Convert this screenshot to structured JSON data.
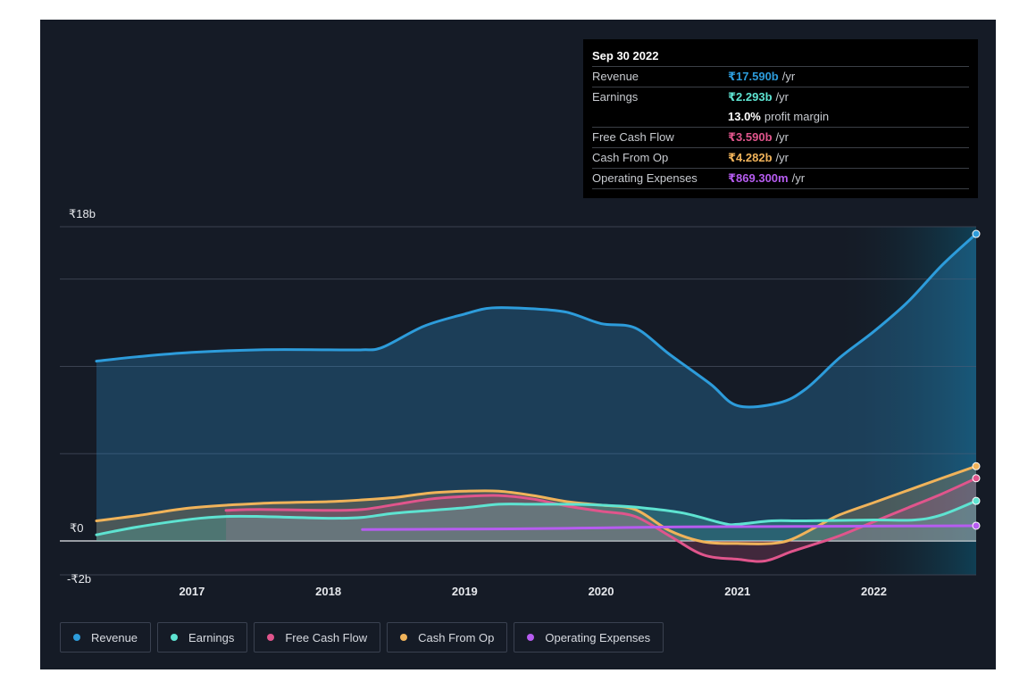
{
  "tooltip": {
    "date": "Sep 30 2022",
    "rows": [
      {
        "name": "Revenue",
        "value": "₹17.590b",
        "unit": "/yr",
        "color": "#2d9cdb"
      },
      {
        "name": "Earnings",
        "value": "₹2.293b",
        "unit": "/yr",
        "color": "#5ee3d1"
      },
      {
        "name": "",
        "value": "13.0%",
        "unit": "profit margin",
        "color": "#ffffff"
      },
      {
        "name": "Free Cash Flow",
        "value": "₹3.590b",
        "unit": "/yr",
        "color": "#e0558c"
      },
      {
        "name": "Cash From Op",
        "value": "₹4.282b",
        "unit": "/yr",
        "color": "#f0b35a"
      },
      {
        "name": "Operating Expenses",
        "value": "₹869.300m",
        "unit": "/yr",
        "color": "#b65cf0"
      }
    ]
  },
  "chart_data": {
    "type": "area",
    "y_labels": {
      "top": "₹18b",
      "zero": "₹0",
      "bottom": "-₹2b"
    },
    "ylim": [
      -2,
      18
    ],
    "xlim": [
      2016.3,
      2022.75
    ],
    "x_ticks": [
      {
        "x": 2017,
        "label": "2017"
      },
      {
        "x": 2018,
        "label": "2018"
      },
      {
        "x": 2019,
        "label": "2019"
      },
      {
        "x": 2020,
        "label": "2020"
      },
      {
        "x": 2021,
        "label": "2021"
      },
      {
        "x": 2022,
        "label": "2022"
      }
    ],
    "gridlines": [
      0,
      5,
      10,
      15,
      18
    ],
    "forecast_start": 2021.75,
    "series": [
      {
        "name": "Revenue",
        "color": "#2d9cdb",
        "fill": true,
        "points": [
          [
            2016.3,
            10.3
          ],
          [
            2016.6,
            10.55
          ],
          [
            2017.0,
            10.8
          ],
          [
            2017.5,
            10.95
          ],
          [
            2018.0,
            10.95
          ],
          [
            2018.25,
            10.95
          ],
          [
            2018.4,
            11.1
          ],
          [
            2018.7,
            12.3
          ],
          [
            2019.0,
            13.0
          ],
          [
            2019.2,
            13.35
          ],
          [
            2019.5,
            13.3
          ],
          [
            2019.75,
            13.1
          ],
          [
            2020.0,
            12.45
          ],
          [
            2020.25,
            12.2
          ],
          [
            2020.5,
            10.7
          ],
          [
            2020.8,
            9.0
          ],
          [
            2021.0,
            7.75
          ],
          [
            2021.3,
            7.9
          ],
          [
            2021.5,
            8.7
          ],
          [
            2021.75,
            10.5
          ],
          [
            2022.0,
            12.0
          ],
          [
            2022.25,
            13.7
          ],
          [
            2022.5,
            15.8
          ],
          [
            2022.75,
            17.59
          ]
        ]
      },
      {
        "name": "Earnings",
        "color": "#5ee3d1",
        "fill": true,
        "points": [
          [
            2016.3,
            0.35
          ],
          [
            2016.6,
            0.8
          ],
          [
            2017.0,
            1.25
          ],
          [
            2017.25,
            1.4
          ],
          [
            2017.5,
            1.4
          ],
          [
            2018.0,
            1.3
          ],
          [
            2018.25,
            1.35
          ],
          [
            2018.5,
            1.6
          ],
          [
            2019.0,
            1.9
          ],
          [
            2019.25,
            2.1
          ],
          [
            2019.5,
            2.1
          ],
          [
            2019.75,
            2.1
          ],
          [
            2020.0,
            2.05
          ],
          [
            2020.3,
            1.9
          ],
          [
            2020.6,
            1.6
          ],
          [
            2020.9,
            1.0
          ],
          [
            2021.0,
            0.95
          ],
          [
            2021.25,
            1.15
          ],
          [
            2021.5,
            1.15
          ],
          [
            2022.0,
            1.2
          ],
          [
            2022.3,
            1.2
          ],
          [
            2022.5,
            1.5
          ],
          [
            2022.75,
            2.293
          ]
        ]
      },
      {
        "name": "Free Cash Flow",
        "color": "#e0558c",
        "fill": true,
        "start": 2017.25,
        "points": [
          [
            2017.25,
            1.75
          ],
          [
            2017.5,
            1.8
          ],
          [
            2018.0,
            1.75
          ],
          [
            2018.25,
            1.8
          ],
          [
            2018.5,
            2.1
          ],
          [
            2018.75,
            2.4
          ],
          [
            2019.0,
            2.55
          ],
          [
            2019.25,
            2.6
          ],
          [
            2019.5,
            2.4
          ],
          [
            2019.75,
            2.0
          ],
          [
            2020.0,
            1.7
          ],
          [
            2020.25,
            1.4
          ],
          [
            2020.5,
            0.3
          ],
          [
            2020.75,
            -0.8
          ],
          [
            2021.0,
            -1.05
          ],
          [
            2021.2,
            -1.15
          ],
          [
            2021.4,
            -0.6
          ],
          [
            2021.6,
            -0.1
          ],
          [
            2021.75,
            0.3
          ],
          [
            2022.0,
            1.1
          ],
          [
            2022.25,
            1.9
          ],
          [
            2022.5,
            2.7
          ],
          [
            2022.75,
            3.59
          ]
        ]
      },
      {
        "name": "Cash From Op",
        "color": "#f0b35a",
        "fill": true,
        "points": [
          [
            2016.3,
            1.15
          ],
          [
            2016.6,
            1.45
          ],
          [
            2017.0,
            1.9
          ],
          [
            2017.5,
            2.15
          ],
          [
            2018.0,
            2.25
          ],
          [
            2018.25,
            2.35
          ],
          [
            2018.5,
            2.5
          ],
          [
            2018.75,
            2.75
          ],
          [
            2019.0,
            2.85
          ],
          [
            2019.25,
            2.85
          ],
          [
            2019.5,
            2.6
          ],
          [
            2019.75,
            2.25
          ],
          [
            2020.0,
            2.05
          ],
          [
            2020.25,
            1.8
          ],
          [
            2020.5,
            0.6
          ],
          [
            2020.75,
            -0.05
          ],
          [
            2021.0,
            -0.15
          ],
          [
            2021.25,
            -0.15
          ],
          [
            2021.4,
            0.1
          ],
          [
            2021.6,
            0.9
          ],
          [
            2021.75,
            1.5
          ],
          [
            2022.0,
            2.2
          ],
          [
            2022.25,
            2.9
          ],
          [
            2022.5,
            3.6
          ],
          [
            2022.75,
            4.282
          ]
        ]
      },
      {
        "name": "Operating Expenses",
        "color": "#b65cf0",
        "fill": false,
        "start": 2018.25,
        "points": [
          [
            2018.25,
            0.65
          ],
          [
            2019.0,
            0.68
          ],
          [
            2019.5,
            0.7
          ],
          [
            2020.0,
            0.75
          ],
          [
            2020.5,
            0.8
          ],
          [
            2021.0,
            0.82
          ],
          [
            2021.5,
            0.83
          ],
          [
            2022.0,
            0.85
          ],
          [
            2022.75,
            0.87
          ]
        ]
      }
    ],
    "legend_placement": "bottom-left"
  },
  "legend": [
    {
      "label": "Revenue",
      "color": "#2d9cdb"
    },
    {
      "label": "Earnings",
      "color": "#5ee3d1"
    },
    {
      "label": "Free Cash Flow",
      "color": "#e0558c"
    },
    {
      "label": "Cash From Op",
      "color": "#f0b35a"
    },
    {
      "label": "Operating Expenses",
      "color": "#b65cf0"
    }
  ]
}
